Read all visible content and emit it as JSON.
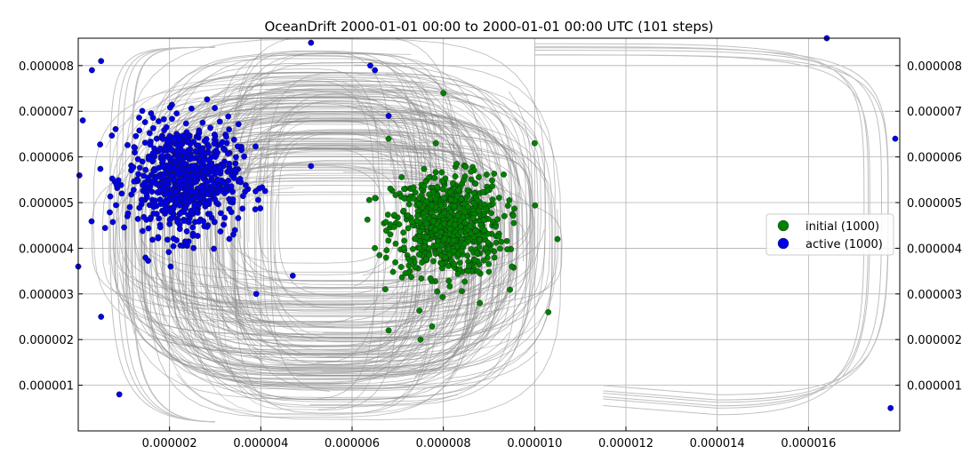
{
  "chart_data": {
    "type": "scatter",
    "title": "OceanDrift  2000-01-01 00:00 to 2000-01-01 00:00 UTC (101 steps)",
    "xlabel": "",
    "ylabel": "",
    "xlim": [
      0.0,
      1.8e-05
    ],
    "ylim": [
      0.0,
      8.6e-06
    ],
    "x_ticks": [
      2e-06,
      4e-06,
      6e-06,
      8e-06,
      1e-05,
      1.2e-05,
      1.4e-05,
      1.6e-05
    ],
    "x_tick_labels": [
      "0.000002",
      "0.000004",
      "0.000006",
      "0.000008",
      "0.000010",
      "0.000012",
      "0.000014",
      "0.000016"
    ],
    "y_ticks": [
      1e-06,
      2e-06,
      3e-06,
      4e-06,
      5e-06,
      6e-06,
      7e-06,
      8e-06
    ],
    "y_tick_labels": [
      "0.000001",
      "0.000002",
      "0.000003",
      "0.000004",
      "0.000005",
      "0.000006",
      "0.000007",
      "0.000008"
    ],
    "grid": true,
    "legend_position": "right",
    "colors": {
      "initial": "#008000",
      "active": "#0000e6",
      "trajectory": "#808080"
    },
    "series": [
      {
        "name": "initial (1000)",
        "color": "#008000",
        "cluster": {
          "center": [
            8.1e-06,
            4.5e-06
          ],
          "spread": [
            1.1e-06,
            1e-06
          ]
        },
        "points": [
          [
            8e-06,
            7.4e-06
          ],
          [
            1.05e-05,
            4.2e-06
          ],
          [
            6.8e-06,
            2.2e-06
          ],
          [
            7.5e-06,
            2e-06
          ],
          [
            1.03e-05,
            2.6e-06
          ],
          [
            1e-05,
            6.3e-06
          ],
          [
            6.5e-06,
            5.1e-06
          ],
          [
            6.8e-06,
            6.4e-06
          ],
          [
            8.8e-06,
            2.8e-06
          ],
          [
            9.5e-06,
            3.6e-06
          ]
        ]
      },
      {
        "name": "active (1000)",
        "color": "#0000e6",
        "cluster": {
          "center": [
            2.3e-06,
            5.5e-06
          ],
          "spread": [
            1.1e-06,
            1.1e-06
          ]
        },
        "points": [
          [
            5e-07,
            8.1e-06
          ],
          [
            3e-07,
            7.9e-06
          ],
          [
            5e-07,
            2.5e-06
          ],
          [
            9e-07,
            8e-07
          ],
          [
            1e-07,
            6.8e-06
          ],
          [
            1.79e-05,
            6.4e-06
          ],
          [
            1.78e-05,
            5e-07
          ],
          [
            0.0,
            3.6e-06
          ],
          [
            5.1e-06,
            8.5e-06
          ],
          [
            6.4e-06,
            8e-06
          ],
          [
            6.5e-06,
            7.9e-06
          ],
          [
            6.8e-06,
            6.9e-06
          ],
          [
            1.64e-05,
            8.6e-06
          ],
          [
            3.4e-06,
            4.3e-06
          ],
          [
            5.1e-06,
            5.8e-06
          ],
          [
            4.7e-06,
            3.4e-06
          ],
          [
            3.9e-06,
            3e-06
          ]
        ]
      }
    ]
  }
}
